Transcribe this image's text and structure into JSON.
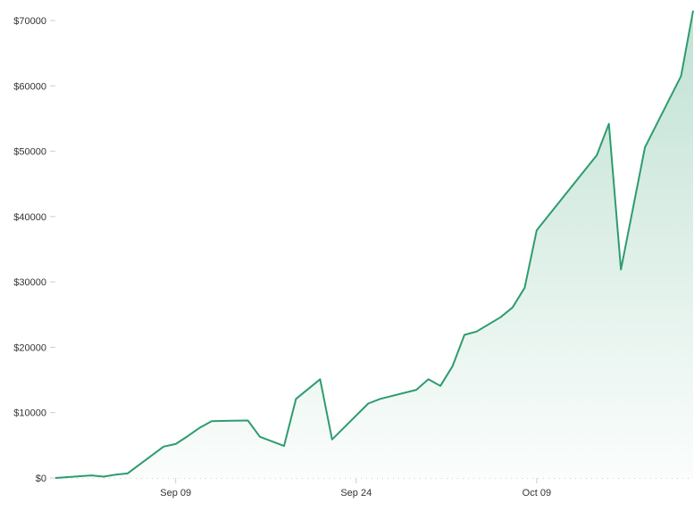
{
  "chart_data": {
    "type": "area",
    "title": "",
    "xlabel": "",
    "ylabel": "",
    "ylim": [
      0,
      70000
    ],
    "y_ticks": [
      "$0",
      "$10000",
      "$20000",
      "$30000",
      "$40000",
      "$50000",
      "$60000",
      "$70000"
    ],
    "y_tick_values": [
      0,
      10000,
      20000,
      30000,
      40000,
      50000,
      60000,
      70000
    ],
    "x_ticks": [
      "Sep 09",
      "Sep 24",
      "Oct 09"
    ],
    "x_tick_values": [
      "2017-09-09",
      "2017-09-24",
      "2017-10-09"
    ],
    "grid": false,
    "colors": {
      "line": "#2e9c6e",
      "fill": "#2e9c6e",
      "axis": "#cccccc",
      "text": "#333333"
    },
    "series": [
      {
        "x": [
          "2017-08-30",
          "2017-09-02",
          "2017-09-03",
          "2017-09-04",
          "2017-09-05",
          "2017-09-08",
          "2017-09-09",
          "2017-09-10",
          "2017-09-11",
          "2017-09-12",
          "2017-09-15",
          "2017-09-16",
          "2017-09-18",
          "2017-09-19",
          "2017-09-21",
          "2017-09-22",
          "2017-09-25",
          "2017-09-26",
          "2017-09-29",
          "2017-09-30",
          "2017-10-01",
          "2017-10-02",
          "2017-10-03",
          "2017-10-04",
          "2017-10-06",
          "2017-10-07",
          "2017-10-08",
          "2017-10-09",
          "2017-10-14",
          "2017-10-15",
          "2017-10-16",
          "2017-10-18",
          "2017-10-21",
          "2017-10-22"
        ],
        "values": [
          0,
          400,
          200,
          500,
          700,
          4800,
          5200,
          6400,
          7700,
          8700,
          8800,
          6300,
          4900,
          12100,
          15100,
          5900,
          11400,
          12100,
          13500,
          15100,
          14100,
          17100,
          21900,
          22400,
          24600,
          26100,
          29100,
          37900,
          49400,
          54200,
          31900,
          50600,
          61500,
          71500
        ]
      }
    ]
  }
}
